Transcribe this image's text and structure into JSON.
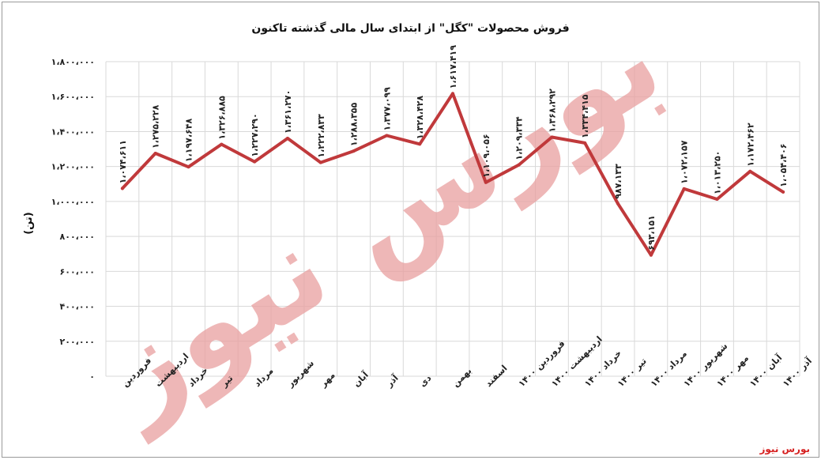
{
  "chart_data": {
    "type": "line",
    "title": "فروش محصولات \"کگل\" از ابتدای سال مالی گذشته تاکنون",
    "xlabel": "",
    "ylabel": "(تن)",
    "ylim": [
      0,
      1800000
    ],
    "yticks": [
      0,
      200000,
      400000,
      600000,
      800000,
      1000000,
      1200000,
      1400000,
      1600000,
      1800000
    ],
    "ytick_labels": [
      "۰",
      "۲۰۰،۰۰۰",
      "۴۰۰،۰۰۰",
      "۶۰۰،۰۰۰",
      "۸۰۰،۰۰۰",
      "۱،۰۰۰،۰۰۰",
      "۱،۲۰۰،۰۰۰",
      "۱،۴۰۰،۰۰۰",
      "۱،۶۰۰،۰۰۰",
      "۱،۸۰۰،۰۰۰"
    ],
    "grid": true,
    "categories": [
      "فروردین",
      "اردیبهشت",
      "خرداد",
      "تیر",
      "مرداد",
      "شهریور",
      "مهر",
      "آبان",
      "آذر",
      "دی",
      "بهمن",
      "اسفند",
      "فروردین ۱۴۰۰",
      "اردیبهشت ۱۴۰۰",
      "خرداد ۱۴۰۰",
      "تیر ۱۴۰۰",
      "مرداد ۱۴۰۰",
      "شهریور ۱۴۰۰",
      "مهر ۱۴۰۰",
      "آبان ۱۴۰۰",
      "آذر ۱۴۰۰"
    ],
    "series": [
      {
        "values": [
          1074611,
          1275228,
          1197648,
          1326885,
          1227290,
          1361270,
          1222833,
          1288355,
          1377099,
          1328428,
          1617419,
          1109056,
          1209334,
          1368292,
          1334415,
          987133,
          693151,
          1072157,
          1013250,
          1172462,
          1054406
        ],
        "labels": [
          "۱،۰۷۴،۶۱۱",
          "۱،۲۷۵،۲۲۸",
          "۱،۱۹۷،۶۴۸",
          "۱،۳۲۶،۸۸۵",
          "۱،۲۲۷،۲۹۰",
          "۱،۳۶۱،۲۷۰",
          "۱،۲۲۲،۸۳۳",
          "۱،۲۸۸،۳۵۵",
          "۱،۳۷۷،۰۹۹",
          "۱،۳۲۸،۴۲۸",
          "۱،۶۱۷،۴۱۹",
          "۱،۱۰۹،۰۵۶",
          "۱،۲۰۹،۳۳۴",
          "۱،۳۶۸،۲۹۲",
          "۱،۳۳۴،۴۱۵",
          "۹۸۷،۱۳۳",
          "۶۹۳،۱۵۱",
          "۱،۰۷۲،۱۵۷",
          "۱،۰۱۳،۲۵۰",
          "۱،۱۷۲،۴۶۲",
          "۱،۰۵۴،۴۰۶"
        ],
        "color": "#c0393b"
      }
    ]
  },
  "watermark": {
    "text": "بورس نیوز",
    "color": "#e9a0a0"
  },
  "source_label": "بورس نیوز"
}
